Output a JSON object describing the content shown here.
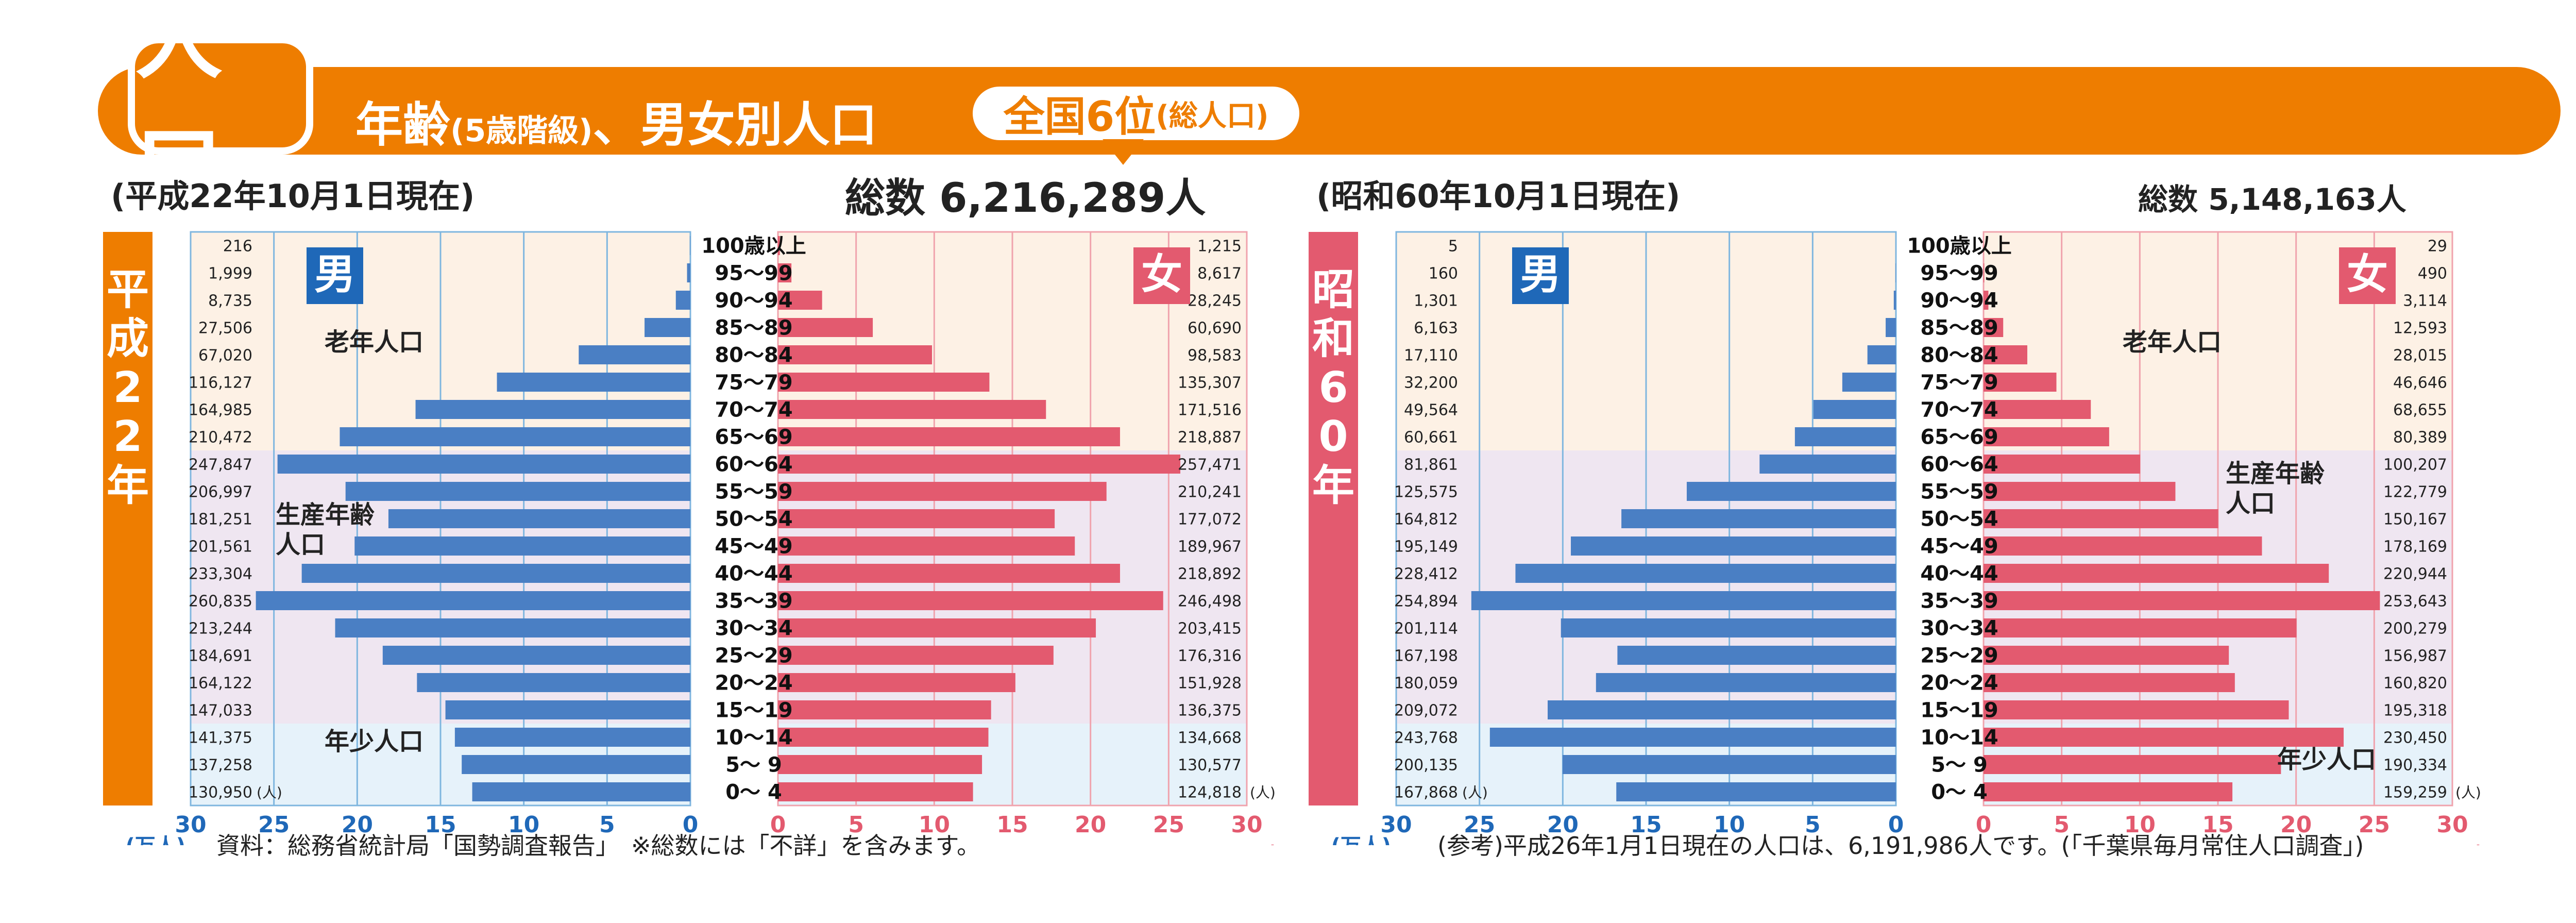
{
  "header": {
    "title": "人口",
    "subtitle_main": "年齢",
    "subtitle_paren": "(5歳階級)",
    "subtitle_rest": "、男女別人口",
    "rank_main": "全国6位",
    "rank_sub": "(総人口)"
  },
  "colors": {
    "accent": "#ee7d00",
    "male_bar": "#4a7fc4",
    "female_bar": "#e35a6f",
    "label_male_bg": "#1f68b8",
    "label_female_bg": "#e35a6f",
    "elderly_bg": "#fdf1e5",
    "working_bg": "#efe6f1",
    "young_bg": "#e6f2fa",
    "era_left_bg": "#ee7d00",
    "era_right_bg": "#e35a6f"
  },
  "age_groups": [
    "100歳以上",
    "95～99",
    "90～94",
    "85～89",
    "80～84",
    "75～79",
    "70～74",
    "65～69",
    "60～64",
    "55～59",
    "50～54",
    "45～49",
    "40～44",
    "35～39",
    "30～34",
    "25～29",
    "20～24",
    "15～19",
    "10～14",
    "5～ 9",
    "0～ 4"
  ],
  "chart_data": [
    {
      "type": "bar",
      "subtype": "population-pyramid",
      "era_label": "平成22年",
      "as_of": "(平成22年10月1日現在)",
      "total_label": "総数 6,216,289人",
      "male_label": "男",
      "female_label": "女",
      "unit_left": "(万人)",
      "unit_right": "(万人)",
      "count_suffix": "(人)",
      "xlim": [
        0,
        30
      ],
      "ticks": [
        "0",
        "5",
        "10",
        "15",
        "20",
        "25",
        "30"
      ],
      "group_labels": [
        "老年人口",
        "生産年齢\n人口",
        "年少人口"
      ],
      "male_values_text": [
        "216",
        "1,999",
        "8,735",
        "27,506",
        "67,020",
        "116,127",
        "164,985",
        "210,472",
        "247,847",
        "206,997",
        "181,251",
        "201,561",
        "233,304",
        "260,835",
        "213,244",
        "184,691",
        "164,122",
        "147,033",
        "141,375",
        "137,258",
        "130,950"
      ],
      "female_values_text": [
        "1,215",
        "8,617",
        "28,245",
        "60,690",
        "98,583",
        "135,307",
        "171,516",
        "218,887",
        "257,471",
        "210,241",
        "177,072",
        "189,967",
        "218,892",
        "246,498",
        "203,415",
        "176,316",
        "151,928",
        "136,375",
        "134,668",
        "130,577",
        "124,818"
      ],
      "male_values": [
        216,
        1999,
        8735,
        27506,
        67020,
        116127,
        164985,
        210472,
        247847,
        206997,
        181251,
        201561,
        233304,
        260835,
        213244,
        184691,
        164122,
        147033,
        141375,
        137258,
        130950
      ],
      "female_values": [
        1215,
        8617,
        28245,
        60690,
        98583,
        135307,
        171516,
        218887,
        257471,
        210241,
        177072,
        189967,
        218892,
        246498,
        203415,
        176316,
        151928,
        136375,
        134668,
        130577,
        124818
      ]
    },
    {
      "type": "bar",
      "subtype": "population-pyramid",
      "era_label": "昭和60年",
      "as_of": "(昭和60年10月1日現在)",
      "total_label": "総数 5,148,163人",
      "male_label": "男",
      "female_label": "女",
      "unit_left": "(万人)",
      "unit_right": "(万人)",
      "count_suffix": "(人)",
      "xlim": [
        0,
        30
      ],
      "ticks": [
        "0",
        "5",
        "10",
        "15",
        "20",
        "25",
        "30"
      ],
      "group_labels": [
        "老年人口",
        "生産年齢\n人口",
        "年少人口"
      ],
      "male_values_text": [
        "5",
        "160",
        "1,301",
        "6,163",
        "17,110",
        "32,200",
        "49,564",
        "60,661",
        "81,861",
        "125,575",
        "164,812",
        "195,149",
        "228,412",
        "254,894",
        "201,114",
        "167,198",
        "180,059",
        "209,072",
        "243,768",
        "200,135",
        "167,868"
      ],
      "female_values_text": [
        "29",
        "490",
        "3,114",
        "12,593",
        "28,015",
        "46,646",
        "68,655",
        "80,389",
        "100,207",
        "122,779",
        "150,167",
        "178,169",
        "220,944",
        "253,643",
        "200,279",
        "156,987",
        "160,820",
        "195,318",
        "230,450",
        "190,334",
        "159,259"
      ],
      "male_values": [
        5,
        160,
        1301,
        6163,
        17110,
        32200,
        49564,
        60661,
        81861,
        125575,
        164812,
        195149,
        228412,
        254894,
        201114,
        167198,
        180059,
        209072,
        243768,
        200135,
        167868
      ],
      "female_values": [
        29,
        490,
        3114,
        12593,
        28015,
        46646,
        68655,
        80389,
        100207,
        122779,
        150167,
        178169,
        220944,
        253643,
        200279,
        156987,
        160820,
        195318,
        230450,
        190334,
        159259
      ]
    }
  ],
  "notes": {
    "source": "資料：総務省統計局「国勢調査報告」　※総数には「不詳」を含みます。",
    "reference": "(参考)平成26年1月1日現在の人口は、6,191,986人です。(「千葉県毎月常住人口調査」)"
  }
}
